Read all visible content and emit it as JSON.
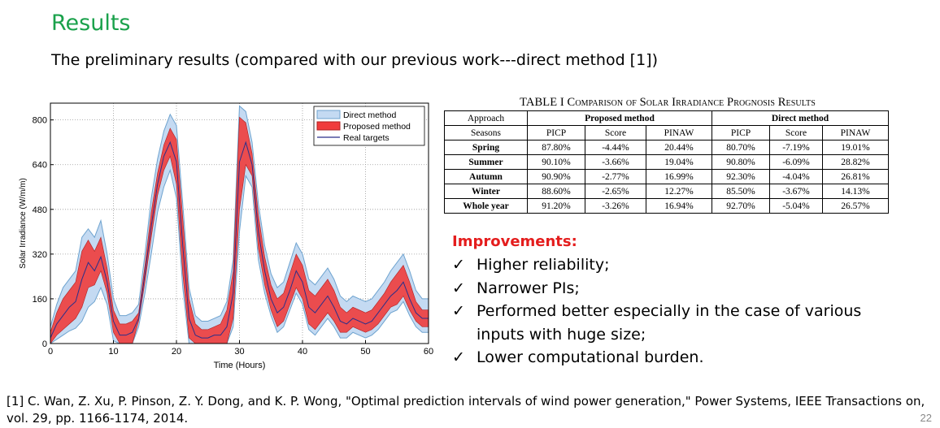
{
  "slide": {
    "title": "Results",
    "subtitle": "The preliminary results (compared with our previous work---direct method [1])",
    "page_number": "22"
  },
  "chart_data": {
    "type": "area",
    "xlabel": "Time (Hours)",
    "ylabel": "Solar Irradiance (W/m/m)",
    "xlim": [
      0,
      60
    ],
    "ylim": [
      0,
      860
    ],
    "xticks": [
      0,
      10,
      20,
      30,
      40,
      50,
      60
    ],
    "yticks": [
      0,
      160,
      320,
      480,
      640,
      800
    ],
    "grid": true,
    "legend_position": "top-right",
    "x": [
      0,
      1,
      2,
      3,
      4,
      5,
      6,
      7,
      8,
      9,
      10,
      11,
      12,
      13,
      14,
      15,
      16,
      17,
      18,
      19,
      20,
      21,
      22,
      23,
      24,
      25,
      26,
      27,
      28,
      29,
      30,
      31,
      32,
      33,
      34,
      35,
      36,
      37,
      38,
      39,
      40,
      41,
      42,
      43,
      44,
      45,
      46,
      47,
      48,
      49,
      50,
      51,
      52,
      53,
      54,
      55,
      56,
      57,
      58,
      59,
      60
    ],
    "series": [
      {
        "name": "Direct method",
        "color": "#c4daf2",
        "edge_color": "#6ea3cf",
        "lower": [
          0,
          15,
          30,
          45,
          55,
          80,
          130,
          150,
          200,
          140,
          10,
          0,
          0,
          0,
          60,
          180,
          320,
          470,
          560,
          620,
          520,
          200,
          0,
          0,
          0,
          0,
          0,
          0,
          0,
          60,
          400,
          600,
          560,
          300,
          180,
          100,
          40,
          60,
          120,
          180,
          140,
          50,
          30,
          60,
          90,
          60,
          20,
          20,
          40,
          30,
          20,
          30,
          50,
          80,
          110,
          120,
          150,
          100,
          60,
          40,
          40
        ],
        "upper": [
          60,
          140,
          200,
          230,
          260,
          380,
          410,
          380,
          440,
          320,
          160,
          100,
          100,
          110,
          140,
          320,
          520,
          660,
          760,
          820,
          780,
          500,
          200,
          100,
          80,
          80,
          90,
          100,
          150,
          300,
          850,
          830,
          720,
          500,
          350,
          250,
          200,
          220,
          290,
          360,
          320,
          230,
          210,
          240,
          270,
          230,
          170,
          150,
          170,
          160,
          150,
          160,
          190,
          220,
          260,
          290,
          320,
          260,
          190,
          160,
          160
        ]
      },
      {
        "name": "Proposed method",
        "color": "#f03c3c",
        "lower": [
          0,
          30,
          50,
          70,
          90,
          130,
          200,
          210,
          260,
          180,
          40,
          0,
          0,
          0,
          80,
          220,
          380,
          530,
          620,
          670,
          570,
          250,
          20,
          0,
          0,
          0,
          0,
          0,
          0,
          90,
          480,
          640,
          600,
          340,
          210,
          120,
          60,
          80,
          140,
          200,
          160,
          70,
          50,
          80,
          110,
          80,
          40,
          40,
          60,
          50,
          40,
          50,
          70,
          100,
          130,
          140,
          170,
          120,
          80,
          60,
          60
        ],
        "upper": [
          40,
          110,
          160,
          190,
          220,
          330,
          370,
          330,
          380,
          270,
          120,
          70,
          70,
          80,
          110,
          280,
          470,
          610,
          710,
          770,
          730,
          450,
          160,
          70,
          50,
          50,
          60,
          70,
          120,
          260,
          810,
          790,
          680,
          460,
          310,
          210,
          160,
          180,
          250,
          320,
          280,
          190,
          170,
          200,
          230,
          190,
          130,
          110,
          130,
          120,
          110,
          120,
          150,
          180,
          220,
          250,
          280,
          220,
          150,
          120,
          120
        ]
      },
      {
        "name": "Real targets",
        "color": "#2a2f8a",
        "values": [
          20,
          70,
          100,
          130,
          150,
          230,
          290,
          260,
          310,
          220,
          80,
          30,
          30,
          40,
          90,
          250,
          420,
          570,
          670,
          720,
          650,
          350,
          90,
          30,
          20,
          20,
          30,
          30,
          60,
          180,
          650,
          720,
          640,
          400,
          260,
          160,
          110,
          130,
          190,
          260,
          220,
          130,
          110,
          140,
          170,
          130,
          80,
          70,
          90,
          80,
          70,
          80,
          110,
          140,
          170,
          190,
          220,
          160,
          110,
          90,
          90
        ]
      }
    ]
  },
  "table": {
    "caption": "TABLE I Comparison of Solar Irradiance Prognosis Results",
    "header_row1": [
      "Approach",
      "Proposed method",
      "Direct method"
    ],
    "header_row2": [
      "Seasons",
      "PICP",
      "Score",
      "PINAW",
      "PICP",
      "Score",
      "PINAW"
    ],
    "rows": [
      [
        "Spring",
        "87.80%",
        "-4.44%",
        "20.44%",
        "80.70%",
        "-7.19%",
        "19.01%"
      ],
      [
        "Summer",
        "90.10%",
        "-3.66%",
        "19.04%",
        "90.80%",
        "-6.09%",
        "28.82%"
      ],
      [
        "Autumn",
        "90.90%",
        "-2.77%",
        "16.99%",
        "92.30%",
        "-4.04%",
        "26.81%"
      ],
      [
        "Winter",
        "88.60%",
        "-2.65%",
        "12.27%",
        "85.50%",
        "-3.67%",
        "14.13%"
      ],
      [
        "Whole year",
        "91.20%",
        "-3.26%",
        "16.94%",
        "92.70%",
        "-5.04%",
        "26.57%"
      ]
    ]
  },
  "improvements": {
    "title": "Improvements:",
    "check_glyph": "✓",
    "items": [
      "Higher reliability;",
      "Narrower PIs;",
      "Performed better especially in the case of various inputs with huge size;",
      "Lower computational burden."
    ]
  },
  "reference": "[1] C. Wan, Z. Xu, P. Pinson, Z. Y. Dong, and K. P. Wong, \"Optimal prediction intervals of wind power generation,\" Power Systems, IEEE Transactions on, vol. 29, pp. 1166-1174, 2014."
}
